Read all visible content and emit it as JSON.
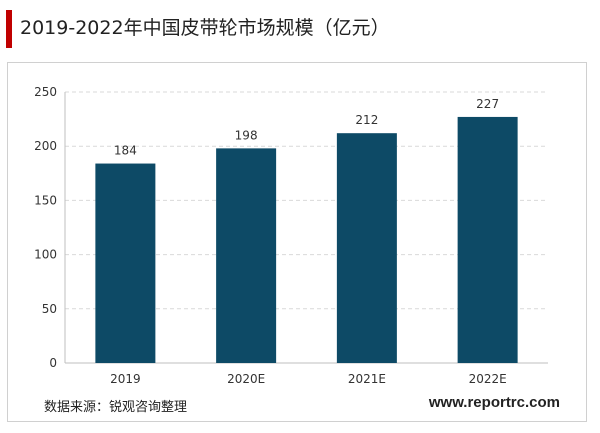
{
  "title": "2019-2022年中国皮带轮市场规模（亿元）",
  "source": "数据来源：锐观咨询整理",
  "website": "www.reportrc.com",
  "colors": {
    "bar": "#0d4a66",
    "accent": "#c00000",
    "grid": "#d9d9d9"
  },
  "chart_data": {
    "type": "bar",
    "categories": [
      "2019",
      "2020E",
      "2021E",
      "2022E"
    ],
    "values": [
      184,
      198,
      212,
      227
    ],
    "ylim": [
      0,
      250
    ],
    "yticks": [
      0,
      50,
      100,
      150,
      200,
      250
    ],
    "grid": true,
    "data_labels": true
  }
}
